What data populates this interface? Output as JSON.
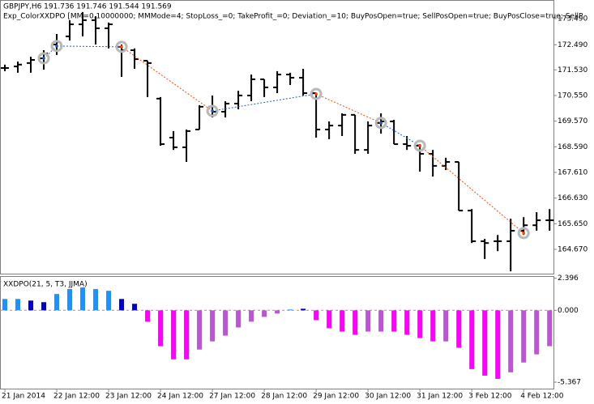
{
  "chart_data": [
    {
      "type": "ohlc",
      "title": "GBPJPY,H6  191.736 191.746 191.544 191.569",
      "subtitle": "Exp_ColorXXDPO [MM=0.10000000; MMMode=4; StopLoss_=0; TakeProfit_=0; Deviation_=10; BuyPosOpen=true; SellPosOpen=true; BuyPosClose=true; SellP",
      "color": "#000000",
      "open": [
        171.6,
        171.66,
        171.79,
        171.97,
        172.5,
        172.81,
        173.27,
        173.43,
        173.12,
        172.41,
        172.28,
        171.88,
        170.43,
        168.94,
        168.57,
        169.25,
        170.12,
        169.93,
        170.24,
        170.55,
        171.17,
        170.86,
        171.35,
        171.23,
        170.64,
        169.25,
        169.4,
        169.81,
        168.47,
        169.5,
        169.56,
        168.69,
        168.63,
        168.32,
        167.86,
        168.01,
        166.15,
        164.98,
        164.98,
        164.98,
        165.38,
        165.59,
        165.78
      ],
      "high": [
        171.73,
        171.85,
        172.03,
        172.28,
        172.9,
        173.43,
        173.74,
        173.58,
        173.34,
        172.5,
        172.35,
        171.88,
        170.49,
        169.19,
        169.25,
        170.18,
        170.55,
        170.33,
        170.73,
        171.35,
        171.17,
        171.48,
        171.42,
        171.57,
        170.64,
        169.56,
        169.87,
        169.81,
        169.56,
        169.87,
        169.62,
        169.0,
        168.69,
        168.47,
        168.17,
        168.01,
        166.21,
        165.07,
        165.22,
        165.84,
        165.9,
        166.09,
        166.21
      ],
      "low": [
        171.48,
        171.42,
        171.42,
        171.54,
        172.1,
        172.65,
        172.81,
        172.5,
        172.35,
        171.26,
        171.57,
        170.49,
        168.63,
        168.47,
        168.01,
        169.25,
        169.71,
        169.71,
        170.02,
        170.33,
        170.49,
        170.64,
        170.95,
        170.55,
        168.94,
        168.88,
        169.0,
        168.32,
        168.32,
        169.09,
        168.69,
        168.47,
        167.64,
        167.45,
        167.7,
        166.15,
        164.91,
        164.3,
        164.6,
        163.83,
        165.22,
        165.38,
        165.38
      ],
      "close": [
        171.6,
        171.73,
        171.91,
        172.16,
        172.59,
        173.27,
        173.43,
        173.12,
        173.27,
        172.28,
        171.94,
        171.79,
        168.69,
        168.57,
        169.19,
        170.12,
        169.93,
        170.24,
        170.55,
        171.17,
        170.86,
        171.35,
        171.23,
        170.64,
        169.25,
        169.4,
        169.81,
        168.47,
        169.4,
        169.56,
        168.69,
        168.63,
        168.32,
        167.86,
        168.01,
        166.15,
        164.98,
        164.91,
        164.98,
        165.38,
        165.59,
        165.78,
        165.78
      ],
      "trades": {
        "x": [
          3,
          4,
          9,
          16,
          24,
          29,
          32,
          40
        ],
        "values": [
          171.97,
          172.44,
          172.41,
          169.96,
          170.61,
          169.5,
          168.63,
          165.29
        ],
        "segment_colors": [
          "#1f5fbf",
          "#1f5fbf",
          "#ff4500",
          "#1f5fbf",
          "#ff4500",
          "#1f5fbf",
          "#ff4500"
        ]
      },
      "xlim": [
        -0.375,
        42.3
      ],
      "ylim": [
        163.74,
        174.2
      ],
      "yticks": [
        {
          "value": 173.49,
          "label": "173.490"
        },
        {
          "value": 172.49,
          "label": "172.490"
        },
        {
          "value": 171.53,
          "label": "171.530"
        },
        {
          "value": 170.55,
          "label": "170.550"
        },
        {
          "value": 169.57,
          "label": "169.570"
        },
        {
          "value": 168.59,
          "label": "168.590"
        },
        {
          "value": 167.61,
          "label": "167.610"
        },
        {
          "value": 166.63,
          "label": "166.630"
        },
        {
          "value": 165.65,
          "label": "165.650"
        },
        {
          "value": 164.67,
          "label": "164.670"
        }
      ]
    },
    {
      "type": "bar",
      "title": "XXDPO(21, 5, T3, JJMA)",
      "values": [
        0.85,
        0.85,
        0.73,
        0.61,
        1.22,
        1.59,
        1.71,
        1.59,
        1.46,
        0.85,
        0.49,
        -0.85,
        -2.68,
        -3.66,
        -3.66,
        -2.93,
        -2.32,
        -1.89,
        -1.28,
        -0.85,
        -0.49,
        -0.24,
        0.06,
        0.12,
        -0.73,
        -1.34,
        -1.59,
        -1.83,
        -1.59,
        -1.59,
        -1.59,
        -1.83,
        -2.07,
        -2.32,
        -2.32,
        -2.8,
        -4.39,
        -4.88,
        -5.12,
        -4.63,
        -3.9,
        -3.29,
        -2.68
      ],
      "colors": [
        "#1e90ff",
        "#1e90ff",
        "#0000cd",
        "#0000cd",
        "#1e90ff",
        "#1e90ff",
        "#1e90ff",
        "#1e90ff",
        "#1e90ff",
        "#0000cd",
        "#0000cd",
        "#ff00ff",
        "#ff00ff",
        "#ff00ff",
        "#ff00ff",
        "#ba55d3",
        "#ba55d3",
        "#ba55d3",
        "#ba55d3",
        "#ba55d3",
        "#ba55d3",
        "#ba55d3",
        "#1e90ff",
        "#0000cd",
        "#ff00ff",
        "#ff00ff",
        "#ff00ff",
        "#ff00ff",
        "#ba55d3",
        "#ba55d3",
        "#ff00ff",
        "#ff00ff",
        "#ff00ff",
        "#ff00ff",
        "#ba55d3",
        "#ff00ff",
        "#ff00ff",
        "#ff00ff",
        "#ff00ff",
        "#ba55d3",
        "#ba55d3",
        "#ba55d3",
        "#ba55d3"
      ],
      "xlim": [
        -0.375,
        42.3
      ],
      "ylim": [
        -5.85,
        2.56
      ],
      "yticks": [
        {
          "value": 2.396,
          "label": "2.396"
        },
        {
          "value": 0,
          "label": "0.000"
        },
        {
          "value": -5.367,
          "label": "-5.367"
        }
      ],
      "xticks": [
        {
          "value": 0,
          "label": "21 Jan 2014"
        },
        {
          "value": 4,
          "label": "22 Jan 12:00"
        },
        {
          "value": 8,
          "label": "23 Jan 12:00"
        },
        {
          "value": 12,
          "label": "24 Jan 12:00"
        },
        {
          "value": 16,
          "label": "27 Jan 12:00"
        },
        {
          "value": 20,
          "label": "28 Jan 12:00"
        },
        {
          "value": 24,
          "label": "29 Jan 12:00"
        },
        {
          "value": 28,
          "label": "30 Jan 12:00"
        },
        {
          "value": 32,
          "label": "31 Jan 12:00"
        },
        {
          "value": 36,
          "label": "3 Feb 12:00"
        },
        {
          "value": 40,
          "label": "4 Feb 12:00"
        }
      ]
    }
  ]
}
